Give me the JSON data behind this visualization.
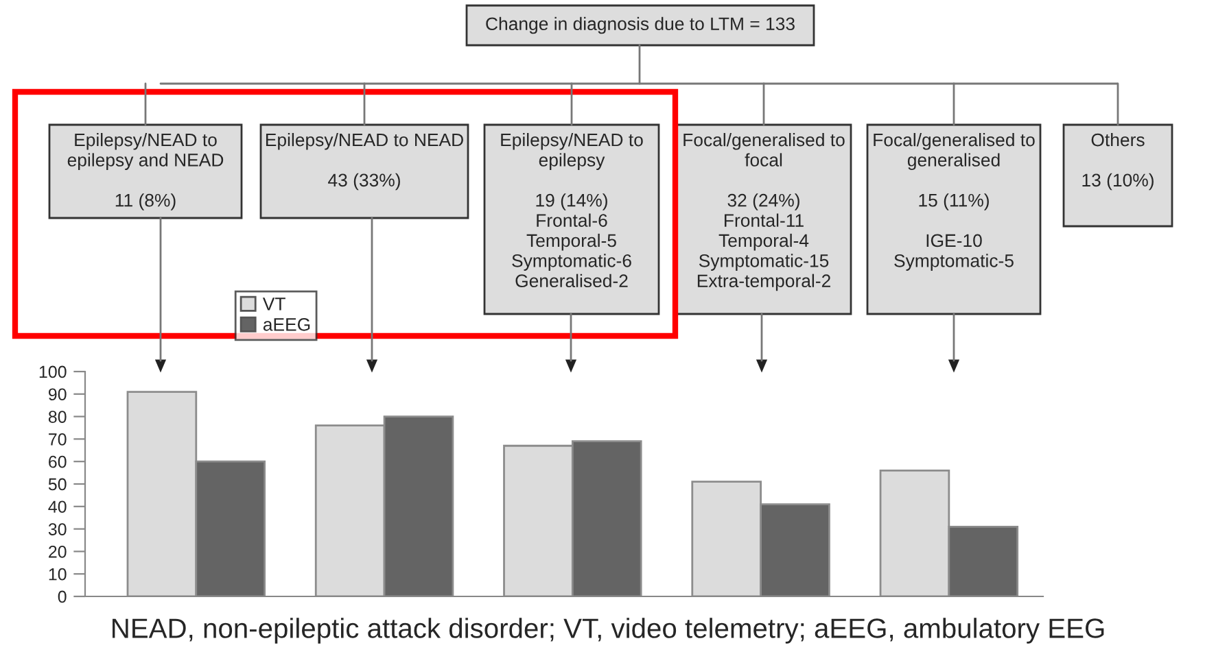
{
  "chart_data": {
    "type": "bar",
    "categories": [
      null,
      null,
      null,
      null,
      null
    ],
    "series": [
      {
        "name": "VT",
        "color": "#dcdcdc",
        "values": [
          91,
          76,
          67,
          51,
          56
        ]
      },
      {
        "name": "aEEG",
        "color": "#646464",
        "values": [
          60,
          80,
          69,
          41,
          31
        ]
      }
    ],
    "ylim": [
      0,
      100
    ],
    "yticks": [
      0,
      10,
      20,
      30,
      40,
      50,
      60,
      70,
      80,
      90,
      100
    ],
    "tick_labels": "y",
    "grid": false,
    "legend": "top left",
    "annotations": [
      "Change in diagnosis due to LTM = 133",
      "Epilepsy/NEAD to\nepilepsy and NEAD\n\n11 (8%)",
      "Epilepsy/NEAD to NEAD\n\n43 (33%)",
      "Epilepsy/NEAD to\nepilepsy\n\n19 (14%)\nFrontal-6\nTemporal-5\nSymptomatic-6\nGeneralised-2",
      "Focal/generalised to\nfocal\n\n32 (24%)\nFrontal-11\nTemporal-4\nSymptomatic-15\nExtra-temporal-2",
      "Focal/generalised to\ngeneralised\n\n15 (11%)\n\nIGE-10\nSymptomatic-5",
      "Others\n\n13 (10%)",
      "NEAD, non-epileptic attack disorder; VT, video telemetry; aEEG, ambulatory EEG"
    ]
  }
}
